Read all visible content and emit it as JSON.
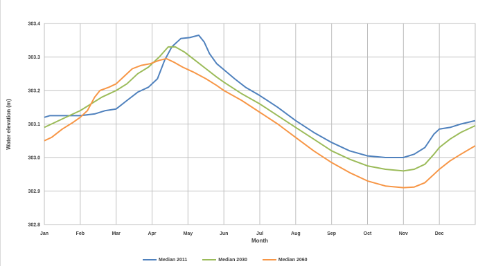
{
  "chart_data": {
    "type": "line",
    "xlabel": "Month",
    "ylabel": "Water elevation (m)",
    "categories": [
      "Jan",
      "Feb",
      "Mar",
      "Apr",
      "May",
      "Jun",
      "Jul",
      "Aug",
      "Sep",
      "Oct",
      "Nov",
      "Dec"
    ],
    "y_ticks": [
      "302.8",
      "302.9",
      "303.0",
      "303.1",
      "303.2",
      "303.3",
      "303.4"
    ],
    "ylim": [
      302.8,
      303.4
    ],
    "grid": true,
    "legend_position": "bottom",
    "series": [
      {
        "name": "Median 2011",
        "color": "#4f81bd",
        "points": [
          [
            0,
            303.12
          ],
          [
            0.15,
            303.125
          ],
          [
            0.6,
            303.125
          ],
          [
            1.0,
            303.125
          ],
          [
            1.4,
            303.13
          ],
          [
            1.7,
            303.14
          ],
          [
            2.0,
            303.145
          ],
          [
            2.3,
            303.17
          ],
          [
            2.6,
            303.195
          ],
          [
            2.9,
            303.21
          ],
          [
            3.15,
            303.235
          ],
          [
            3.35,
            303.29
          ],
          [
            3.55,
            303.33
          ],
          [
            3.8,
            303.355
          ],
          [
            4.05,
            303.358
          ],
          [
            4.3,
            303.365
          ],
          [
            4.45,
            303.345
          ],
          [
            4.6,
            303.31
          ],
          [
            4.8,
            303.28
          ],
          [
            5.0,
            303.262
          ],
          [
            5.3,
            303.235
          ],
          [
            5.6,
            303.21
          ],
          [
            6.0,
            303.185
          ],
          [
            6.5,
            303.15
          ],
          [
            7.0,
            303.11
          ],
          [
            7.5,
            303.075
          ],
          [
            8.0,
            303.045
          ],
          [
            8.5,
            303.02
          ],
          [
            9.0,
            303.005
          ],
          [
            9.5,
            303.0
          ],
          [
            10.0,
            303.0
          ],
          [
            10.3,
            303.01
          ],
          [
            10.6,
            303.03
          ],
          [
            10.85,
            303.07
          ],
          [
            11.0,
            303.085
          ],
          [
            11.3,
            303.09
          ],
          [
            11.6,
            303.1
          ],
          [
            12.0,
            303.11
          ]
        ]
      },
      {
        "name": "Median 2030",
        "color": "#9bbb59",
        "points": [
          [
            0,
            303.09
          ],
          [
            0.4,
            303.11
          ],
          [
            0.8,
            303.13
          ],
          [
            1.0,
            303.14
          ],
          [
            1.3,
            303.16
          ],
          [
            1.6,
            303.18
          ],
          [
            2.0,
            303.2
          ],
          [
            2.3,
            303.22
          ],
          [
            2.6,
            303.25
          ],
          [
            2.9,
            303.27
          ],
          [
            3.2,
            303.3
          ],
          [
            3.45,
            303.33
          ],
          [
            3.65,
            303.33
          ],
          [
            3.9,
            303.315
          ],
          [
            4.2,
            303.29
          ],
          [
            4.5,
            303.265
          ],
          [
            4.8,
            303.24
          ],
          [
            5.0,
            303.225
          ],
          [
            5.5,
            303.19
          ],
          [
            6.0,
            303.16
          ],
          [
            6.5,
            303.125
          ],
          [
            7.0,
            303.09
          ],
          [
            7.5,
            303.055
          ],
          [
            8.0,
            303.02
          ],
          [
            8.5,
            302.995
          ],
          [
            9.0,
            302.975
          ],
          [
            9.5,
            302.965
          ],
          [
            10.0,
            302.96
          ],
          [
            10.3,
            302.965
          ],
          [
            10.6,
            302.98
          ],
          [
            10.85,
            303.01
          ],
          [
            11.0,
            303.03
          ],
          [
            11.3,
            303.055
          ],
          [
            11.6,
            303.075
          ],
          [
            12.0,
            303.095
          ]
        ]
      },
      {
        "name": "Median 2060",
        "color": "#f79646",
        "points": [
          [
            0,
            303.05
          ],
          [
            0.2,
            303.06
          ],
          [
            0.5,
            303.085
          ],
          [
            0.8,
            303.105
          ],
          [
            1.0,
            303.12
          ],
          [
            1.2,
            303.14
          ],
          [
            1.4,
            303.18
          ],
          [
            1.55,
            303.2
          ],
          [
            1.8,
            303.21
          ],
          [
            2.0,
            303.22
          ],
          [
            2.2,
            303.24
          ],
          [
            2.45,
            303.265
          ],
          [
            2.7,
            303.275
          ],
          [
            2.95,
            303.28
          ],
          [
            3.2,
            303.29
          ],
          [
            3.4,
            303.295
          ],
          [
            3.6,
            303.285
          ],
          [
            3.85,
            303.27
          ],
          [
            4.15,
            303.255
          ],
          [
            4.5,
            303.235
          ],
          [
            4.8,
            303.215
          ],
          [
            5.0,
            303.2
          ],
          [
            5.5,
            303.17
          ],
          [
            6.0,
            303.135
          ],
          [
            6.5,
            303.1
          ],
          [
            7.0,
            303.06
          ],
          [
            7.5,
            303.02
          ],
          [
            8.0,
            302.985
          ],
          [
            8.5,
            302.955
          ],
          [
            9.0,
            302.93
          ],
          [
            9.5,
            302.915
          ],
          [
            10.0,
            302.91
          ],
          [
            10.3,
            302.912
          ],
          [
            10.6,
            302.925
          ],
          [
            10.85,
            302.95
          ],
          [
            11.0,
            302.965
          ],
          [
            11.3,
            302.99
          ],
          [
            11.6,
            303.01
          ],
          [
            12.0,
            303.035
          ]
        ]
      }
    ]
  }
}
